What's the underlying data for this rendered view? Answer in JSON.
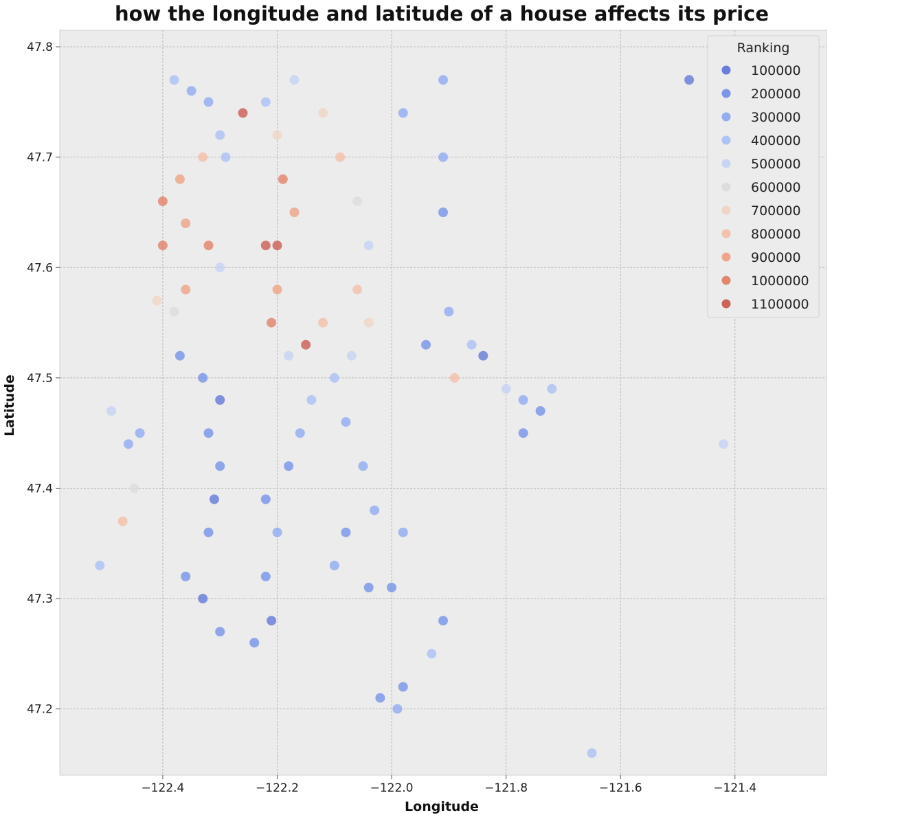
{
  "chart_data": {
    "type": "scatter",
    "title": "how the longitude and latitude of a house affects its price",
    "xlabel": "Longitude",
    "ylabel": "Latitude",
    "xlim": [
      -122.58,
      -121.24
    ],
    "ylim": [
      47.14,
      47.815
    ],
    "xticks": [
      -122.4,
      -122.2,
      -122.0,
      -121.8,
      -121.6,
      -121.4
    ],
    "xtick_labels": [
      "−122.4",
      "−122.2",
      "−122.0",
      "−121.8",
      "−121.6",
      "−121.4"
    ],
    "yticks": [
      47.2,
      47.3,
      47.4,
      47.5,
      47.6,
      47.7,
      47.8
    ],
    "ytick_labels": [
      "47.2",
      "47.3",
      "47.4",
      "47.5",
      "47.6",
      "47.7",
      "47.8"
    ],
    "grid": true,
    "colormap": "coolwarm",
    "legend": {
      "title": "Ranking",
      "placement": "top-right",
      "entries": [
        {
          "label": "100000",
          "color": "#5b72d8"
        },
        {
          "label": "200000",
          "color": "#6f8de8"
        },
        {
          "label": "300000",
          "color": "#8ba6f2"
        },
        {
          "label": "400000",
          "color": "#a7bff7"
        },
        {
          "label": "500000",
          "color": "#c3d2f4"
        },
        {
          "label": "600000",
          "color": "#dcdcdc"
        },
        {
          "label": "700000",
          "color": "#f1d3c3"
        },
        {
          "label": "800000",
          "color": "#f4bea6"
        },
        {
          "label": "900000",
          "color": "#ef9d7f"
        },
        {
          "label": "1000000",
          "color": "#e07b62"
        },
        {
          "label": "1100000",
          "color": "#c95449"
        }
      ]
    },
    "points": [
      [
        -122.38,
        47.77,
        400000
      ],
      [
        -122.35,
        47.76,
        300000
      ],
      [
        -122.32,
        47.75,
        300000
      ],
      [
        -122.3,
        47.72,
        400000
      ],
      [
        -122.33,
        47.7,
        800000
      ],
      [
        -122.37,
        47.68,
        900000
      ],
      [
        -122.4,
        47.66,
        1000000
      ],
      [
        -122.36,
        47.64,
        900000
      ],
      [
        -122.32,
        47.62,
        1000000
      ],
      [
        -122.3,
        47.6,
        500000
      ],
      [
        -122.36,
        47.58,
        900000
      ],
      [
        -122.38,
        47.56,
        600000
      ],
      [
        -122.37,
        47.52,
        200000
      ],
      [
        -122.33,
        47.5,
        200000
      ],
      [
        -122.3,
        47.48,
        100000
      ],
      [
        -122.32,
        47.45,
        200000
      ],
      [
        -122.3,
        47.42,
        200000
      ],
      [
        -122.31,
        47.39,
        100000
      ],
      [
        -122.32,
        47.36,
        200000
      ],
      [
        -122.36,
        47.32,
        200000
      ],
      [
        -122.33,
        47.3,
        100000
      ],
      [
        -122.3,
        47.27,
        200000
      ],
      [
        -122.24,
        47.26,
        200000
      ],
      [
        -122.21,
        47.28,
        100000
      ],
      [
        -122.22,
        47.32,
        200000
      ],
      [
        -122.2,
        47.36,
        300000
      ],
      [
        -122.22,
        47.39,
        200000
      ],
      [
        -122.18,
        47.42,
        200000
      ],
      [
        -122.16,
        47.45,
        300000
      ],
      [
        -122.14,
        47.48,
        400000
      ],
      [
        -122.18,
        47.52,
        500000
      ],
      [
        -122.21,
        47.55,
        1000000
      ],
      [
        -122.2,
        47.58,
        900000
      ],
      [
        -122.2,
        47.62,
        1100000
      ],
      [
        -122.17,
        47.65,
        900000
      ],
      [
        -122.19,
        47.68,
        1000000
      ],
      [
        -122.2,
        47.72,
        700000
      ],
      [
        -122.22,
        47.75,
        400000
      ],
      [
        -122.17,
        47.77,
        500000
      ],
      [
        -122.12,
        47.74,
        700000
      ],
      [
        -122.09,
        47.7,
        800000
      ],
      [
        -122.06,
        47.66,
        600000
      ],
      [
        -122.04,
        47.62,
        500000
      ],
      [
        -122.06,
        47.58,
        800000
      ],
      [
        -122.04,
        47.55,
        700000
      ],
      [
        -122.07,
        47.52,
        500000
      ],
      [
        -122.1,
        47.5,
        400000
      ],
      [
        -122.08,
        47.46,
        300000
      ],
      [
        -122.05,
        47.42,
        300000
      ],
      [
        -122.03,
        47.38,
        300000
      ],
      [
        -122.08,
        47.36,
        200000
      ],
      [
        -122.1,
        47.33,
        300000
      ],
      [
        -122.04,
        47.31,
        200000
      ],
      [
        -122.0,
        47.31,
        200000
      ],
      [
        -122.02,
        47.21,
        200000
      ],
      [
        -121.99,
        47.2,
        300000
      ],
      [
        -121.98,
        47.22,
        200000
      ],
      [
        -121.98,
        47.74,
        300000
      ],
      [
        -121.91,
        47.7,
        300000
      ],
      [
        -121.91,
        47.65,
        200000
      ],
      [
        -121.9,
        47.56,
        300000
      ],
      [
        -121.86,
        47.53,
        400000
      ],
      [
        -121.8,
        47.49,
        500000
      ],
      [
        -121.77,
        47.48,
        300000
      ],
      [
        -121.74,
        47.47,
        200000
      ],
      [
        -121.72,
        47.49,
        400000
      ],
      [
        -121.77,
        47.45,
        200000
      ],
      [
        -121.91,
        47.77,
        300000
      ],
      [
        -121.48,
        47.77,
        100000
      ],
      [
        -121.42,
        47.44,
        500000
      ],
      [
        -121.65,
        47.16,
        400000
      ],
      [
        -122.46,
        47.44,
        300000
      ],
      [
        -122.49,
        47.47,
        500000
      ],
      [
        -122.45,
        47.4,
        600000
      ],
      [
        -122.47,
        47.37,
        800000
      ],
      [
        -122.51,
        47.33,
        400000
      ],
      [
        -122.44,
        47.45,
        300000
      ],
      [
        -122.41,
        47.57,
        700000
      ],
      [
        -122.4,
        47.62,
        1000000
      ],
      [
        -122.29,
        47.7,
        400000
      ],
      [
        -122.26,
        47.74,
        1100000
      ],
      [
        -122.22,
        47.62,
        1100000
      ],
      [
        -122.15,
        47.53,
        1100000
      ],
      [
        -122.12,
        47.55,
        800000
      ],
      [
        -121.94,
        47.53,
        200000
      ],
      [
        -121.84,
        47.52,
        100000
      ],
      [
        -121.98,
        47.36,
        300000
      ],
      [
        -121.91,
        47.28,
        200000
      ],
      [
        -121.93,
        47.25,
        400000
      ],
      [
        -121.89,
        47.5,
        800000
      ]
    ]
  }
}
